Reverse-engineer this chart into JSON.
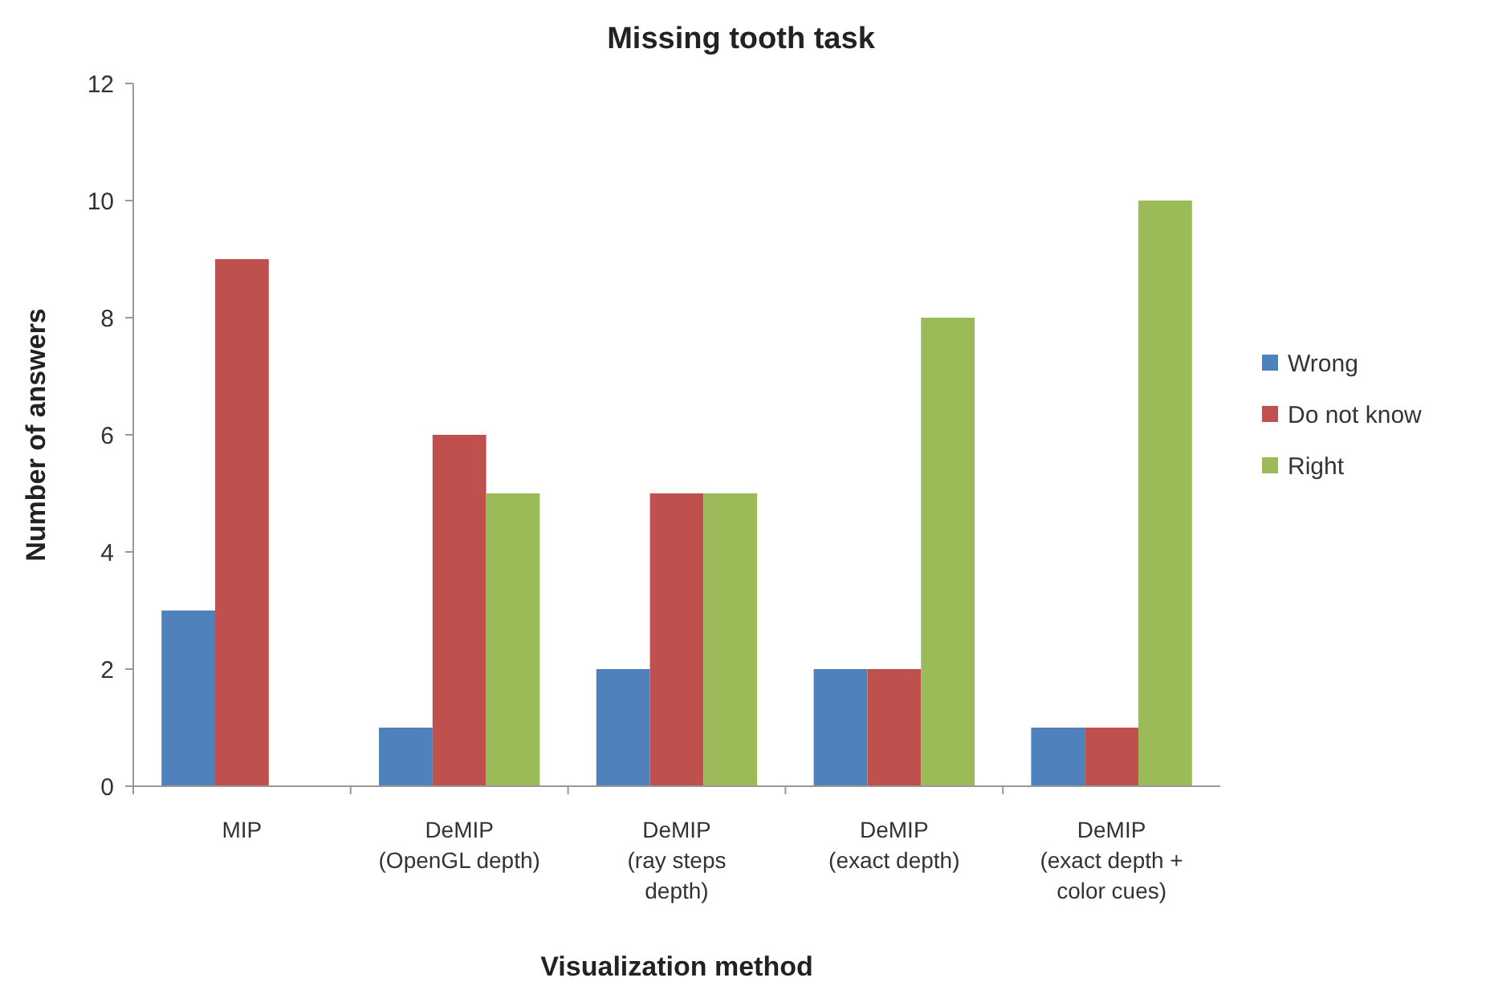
{
  "chart_data": {
    "type": "bar",
    "title": "Missing tooth task",
    "xlabel": "Visualization method",
    "ylabel": "Number of answers",
    "categories": [
      "MIP",
      "DeMIP\n(OpenGL depth)",
      "DeMIP\n(ray steps\ndepth)",
      "DeMIP\n(exact depth)",
      "DeMIP\n(exact depth +\ncolor cues)"
    ],
    "series": [
      {
        "name": "Wrong",
        "color": "#4f81bd",
        "values": [
          3,
          1,
          2,
          2,
          1
        ]
      },
      {
        "name": "Do not know",
        "color": "#c0504d",
        "values": [
          9,
          6,
          5,
          2,
          1
        ]
      },
      {
        "name": "Right",
        "color": "#9bbb59",
        "values": [
          0,
          5,
          5,
          8,
          10
        ]
      }
    ],
    "ylim": [
      0,
      12
    ],
    "yticks": [
      0,
      2,
      4,
      6,
      8,
      10,
      12
    ],
    "grid": false,
    "legend": "right"
  }
}
